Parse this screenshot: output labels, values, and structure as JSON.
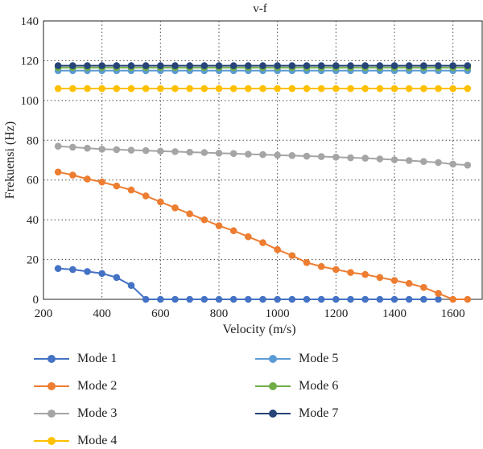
{
  "chart_data": {
    "type": "line",
    "title": "v-f",
    "xlabel": "Velocity (m/s)",
    "ylabel": "Frekuensi (Hz)",
    "xlim": [
      200,
      1700
    ],
    "ylim": [
      0,
      140
    ],
    "xticks": [
      200,
      400,
      600,
      800,
      1000,
      1200,
      1400,
      1600
    ],
    "yticks": [
      0,
      20,
      40,
      60,
      80,
      100,
      120,
      140
    ],
    "grid": "dotted",
    "legend_position": "bottom",
    "x": [
      250,
      300,
      350,
      400,
      450,
      500,
      550,
      600,
      650,
      700,
      750,
      800,
      850,
      900,
      950,
      1000,
      1050,
      1100,
      1150,
      1200,
      1250,
      1300,
      1350,
      1400,
      1450,
      1500,
      1550,
      1600,
      1650
    ],
    "series": [
      {
        "name": "Mode 1",
        "color": "#4472c4",
        "values": [
          15.5,
          15,
          14,
          13,
          11,
          7,
          0,
          0,
          0,
          0,
          0,
          0,
          0,
          0,
          0,
          0,
          0,
          0,
          0,
          0,
          0,
          0,
          0,
          0,
          0,
          0,
          0,
          null,
          null
        ]
      },
      {
        "name": "Mode 2",
        "color": "#ed7d31",
        "values": [
          64,
          62.5,
          60.5,
          59,
          57,
          55,
          52,
          49,
          46,
          43,
          40,
          37,
          34.5,
          31.5,
          28.5,
          25,
          22,
          18.5,
          16.5,
          15,
          13.5,
          12.5,
          11,
          9.5,
          8,
          6,
          3,
          0,
          0
        ]
      },
      {
        "name": "Mode 3",
        "color": "#a5a5a5",
        "values": [
          77,
          76.5,
          76,
          75.5,
          75.3,
          75,
          74.8,
          74.5,
          74.3,
          74,
          73.8,
          73.5,
          73.3,
          73,
          72.8,
          72.5,
          72.3,
          72,
          71.8,
          71.5,
          71.2,
          71,
          70.6,
          70.2,
          69.8,
          69.3,
          68.8,
          68,
          67.5
        ]
      },
      {
        "name": "Mode 4",
        "color": "#ffc000",
        "values": [
          106,
          106,
          106,
          106,
          106,
          106,
          106,
          106,
          106,
          106,
          106,
          106,
          106,
          106,
          106,
          106,
          106,
          106,
          106,
          106,
          106,
          106,
          106,
          106,
          106,
          106,
          106,
          106,
          106
        ]
      },
      {
        "name": "Mode 5",
        "color": "#5b9bd5",
        "values": [
          115,
          115,
          115,
          115,
          115,
          115,
          115,
          115,
          115,
          115,
          115,
          115,
          115,
          115,
          115,
          115,
          115,
          115,
          115,
          115,
          115,
          115,
          115,
          115,
          115,
          115,
          115,
          115,
          115
        ]
      },
      {
        "name": "Mode 6",
        "color": "#70ad47",
        "values": [
          116.5,
          116.5,
          116.5,
          116.5,
          116.5,
          116.5,
          116.5,
          116.5,
          116.5,
          116.5,
          116.5,
          116.5,
          116.5,
          116.5,
          116.5,
          116.5,
          116.5,
          116.5,
          116.5,
          116.5,
          116.5,
          116.5,
          116.5,
          116.5,
          116.5,
          116.5,
          116.5,
          116.5,
          116.5
        ]
      },
      {
        "name": "Mode 7",
        "color": "#264478",
        "values": [
          117.5,
          117.5,
          117.5,
          117.5,
          117.5,
          117.5,
          117.5,
          117.5,
          117.5,
          117.5,
          117.5,
          117.5,
          117.5,
          117.5,
          117.5,
          117.5,
          117.5,
          117.5,
          117.5,
          117.5,
          117.5,
          117.5,
          117.5,
          117.5,
          117.5,
          117.5,
          117.5,
          117.5,
          117.5
        ]
      }
    ]
  }
}
